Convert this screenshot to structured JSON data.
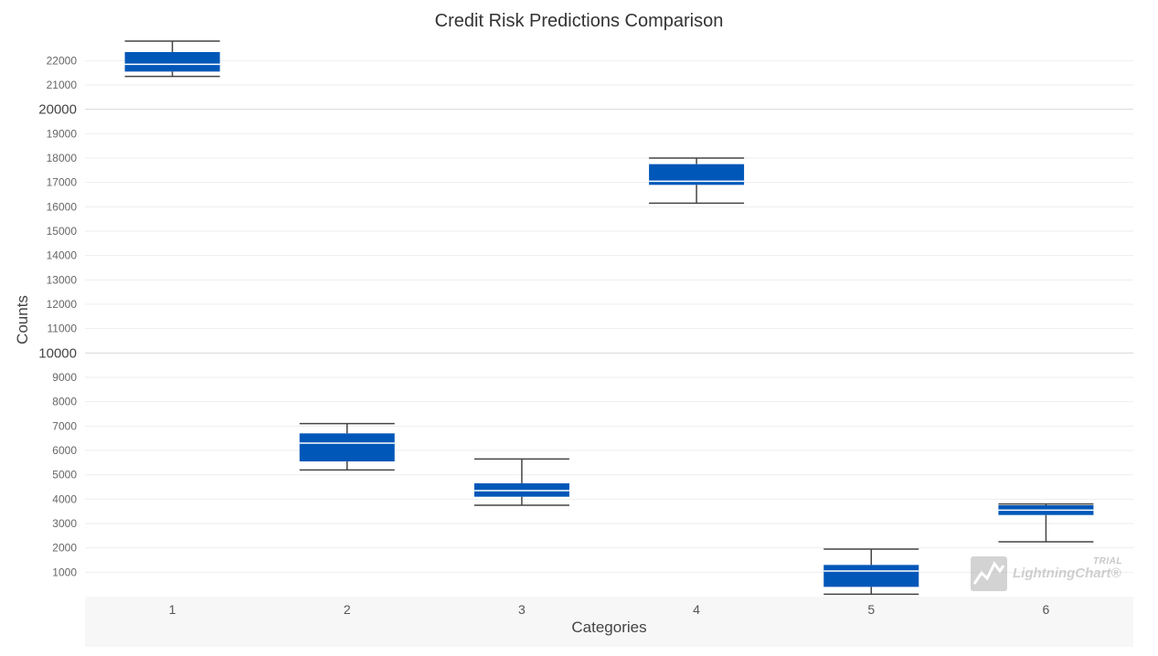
{
  "chart_data": {
    "type": "box",
    "title": "Credit Risk Predictions Comparison",
    "xlabel": "Categories",
    "ylabel": "Counts",
    "categories": [
      "1",
      "2",
      "3",
      "4",
      "5",
      "6"
    ],
    "ylim": [
      0,
      22800
    ],
    "y_ticks": [
      1000,
      2000,
      3000,
      4000,
      5000,
      6000,
      7000,
      8000,
      9000,
      10000,
      11000,
      12000,
      13000,
      14000,
      15000,
      16000,
      17000,
      18000,
      19000,
      20000,
      21000,
      22000
    ],
    "y_major_ticks": [
      10000,
      20000
    ],
    "grid": true,
    "boxes": [
      {
        "category": "1",
        "min": 21350,
        "q1": 21550,
        "median": 21850,
        "q3": 22350,
        "max": 22800
      },
      {
        "category": "2",
        "min": 5200,
        "q1": 5550,
        "median": 6300,
        "q3": 6700,
        "max": 7100
      },
      {
        "category": "3",
        "min": 3750,
        "q1": 4100,
        "median": 4350,
        "q3": 4650,
        "max": 5650
      },
      {
        "category": "4",
        "min": 16150,
        "q1": 16900,
        "median": 17050,
        "q3": 17750,
        "max": 18000
      },
      {
        "category": "5",
        "min": 100,
        "q1": 400,
        "median": 1050,
        "q3": 1300,
        "max": 1950
      },
      {
        "category": "6",
        "min": 2250,
        "q1": 3350,
        "median": 3550,
        "q3": 3750,
        "max": 3800
      }
    ],
    "colors": {
      "box": "#0057b8",
      "median": "#ffffff",
      "whisker": "#444444",
      "grid": "#eeeeee",
      "grid_major": "#d8d8d8"
    }
  },
  "watermark": {
    "trial": "TRIAL",
    "name": "LightningChart®"
  }
}
